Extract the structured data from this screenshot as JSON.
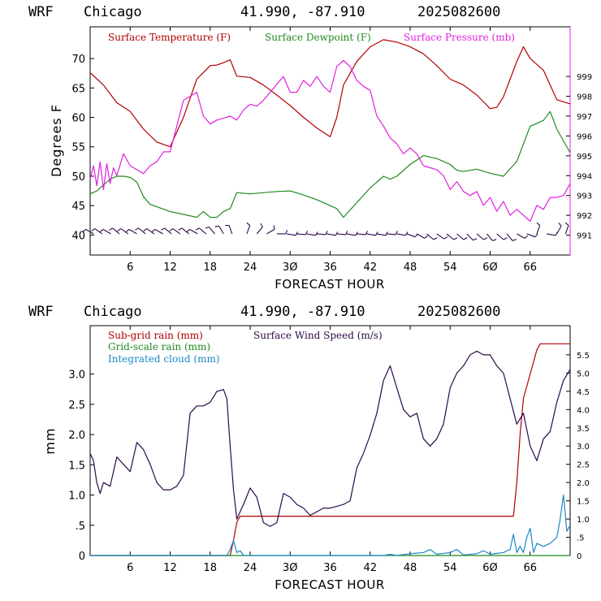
{
  "header": {
    "model": "WRF",
    "location": "Chicago",
    "coords": "41.990, -87.910",
    "run": "2025082600"
  },
  "colors": {
    "temperature": "#b00000",
    "dewpoint": "#1f8a1f",
    "pressure": "#e020e0",
    "subgrid_rain": "#b00000",
    "gridscale_rain": "#1f8a1f",
    "cloud": "#1a88c8",
    "wind": "#2a0a4a",
    "barb": "#2a0a4a"
  },
  "chart_data": [
    {
      "type": "line",
      "xlabel": "FORECAST HOUR",
      "ylabel": "Degrees F",
      "y2label": "",
      "xlim": [
        0,
        72
      ],
      "xticks": [
        6,
        12,
        18,
        24,
        30,
        36,
        42,
        48,
        54,
        60,
        66
      ],
      "xtick_labels": [
        "6",
        "12",
        "18",
        "24",
        "3Ø",
        "36",
        "42",
        "48",
        "54",
        "6Ø",
        "66"
      ],
      "ylim": [
        36.6,
        75.4
      ],
      "yticks": [
        40,
        45,
        50,
        55,
        60,
        65,
        70
      ],
      "ytick_labels": [
        "40",
        "45",
        "50",
        "55",
        "60",
        "65",
        "70"
      ],
      "y2lim": [
        990.0,
        1001.5
      ],
      "y2ticks": [
        991,
        992,
        993,
        994,
        995,
        996,
        997,
        998,
        999
      ],
      "y2tick_labels": [
        "991",
        "992",
        "993",
        "994",
        "995",
        "996",
        "997",
        "998",
        "999"
      ],
      "legend": [
        {
          "label": "Surface Temperature (F)",
          "key": "temperature"
        },
        {
          "label": "Surface Dewpoint (F)",
          "key": "dewpoint"
        },
        {
          "label": "Surface Pressure (mb)",
          "key": "pressure"
        }
      ],
      "series": [
        {
          "name": "Surface Temperature (F)",
          "key": "temperature",
          "axis": "left",
          "x": [
            0,
            2,
            4,
            6,
            8,
            10,
            12,
            14,
            16,
            18,
            19,
            20,
            21,
            22,
            24,
            26,
            28,
            30,
            32,
            34,
            36,
            37,
            38,
            40,
            42,
            44,
            46,
            48,
            50,
            52,
            54,
            56,
            58,
            60,
            61,
            62,
            64,
            65,
            66,
            68,
            70,
            72
          ],
          "values": [
            67.6,
            65.5,
            62.5,
            61.0,
            58.0,
            55.8,
            55.0,
            60.0,
            66.5,
            68.8,
            68.9,
            69.3,
            69.8,
            67.0,
            66.8,
            65.5,
            63.8,
            62.0,
            60.0,
            58.2,
            56.7,
            60.0,
            65.5,
            69.5,
            72.0,
            73.2,
            72.8,
            72.0,
            70.8,
            68.8,
            66.5,
            65.5,
            63.8,
            61.5,
            61.7,
            63.5,
            69.5,
            72.0,
            70.0,
            68.0,
            63.0,
            62.3
          ]
        },
        {
          "name": "Surface Dewpoint (F)",
          "key": "dewpoint",
          "axis": "left",
          "x": [
            0,
            1,
            2,
            3,
            4,
            5,
            6,
            7,
            8,
            9,
            10,
            12,
            14,
            16,
            17,
            18,
            19,
            20,
            21,
            22,
            24,
            26,
            28,
            30,
            32,
            34,
            36,
            37,
            38,
            40,
            42,
            44,
            45,
            46,
            48,
            50,
            52,
            54,
            55,
            56,
            58,
            60,
            62,
            64,
            66,
            68,
            69,
            70,
            72
          ],
          "values": [
            47.0,
            47.5,
            48.5,
            49.5,
            50.0,
            50.0,
            49.8,
            49.0,
            46.5,
            45.2,
            44.8,
            44.0,
            43.5,
            43.0,
            44.0,
            43.0,
            43.0,
            44.0,
            44.5,
            47.2,
            47.0,
            47.2,
            47.4,
            47.5,
            46.8,
            46.0,
            45.0,
            44.5,
            43.0,
            45.5,
            48.0,
            50.0,
            49.5,
            50.0,
            52.0,
            53.5,
            53.0,
            52.0,
            51.0,
            50.8,
            51.2,
            50.5,
            50.0,
            52.5,
            58.5,
            59.5,
            61.0,
            58.0,
            54.0
          ]
        },
        {
          "name": "Surface Pressure (mb)",
          "key": "pressure",
          "axis": "right",
          "x": [
            0,
            0.5,
            1,
            1.5,
            2,
            2.5,
            3,
            3.5,
            4,
            5,
            6,
            7,
            8,
            9,
            10,
            11,
            12,
            13,
            14,
            15,
            16,
            17,
            18,
            19,
            20,
            21,
            22,
            23,
            24,
            25,
            26,
            27,
            28,
            29,
            30,
            31,
            32,
            33,
            34,
            35,
            36,
            37,
            38,
            39,
            40,
            41,
            42,
            43,
            44,
            45,
            46,
            47,
            48,
            49,
            50,
            51,
            52,
            53,
            54,
            55,
            56,
            57,
            58,
            59,
            60,
            61,
            62,
            63,
            64,
            65,
            66,
            67,
            68,
            69,
            70,
            71,
            72
          ],
          "values": [
            993.8,
            994.5,
            993.5,
            994.7,
            993.3,
            994.6,
            993.6,
            994.4,
            994.0,
            995.1,
            994.5,
            994.3,
            994.1,
            994.5,
            994.7,
            995.2,
            995.2,
            996.5,
            997.8,
            998.0,
            998.2,
            997.0,
            996.6,
            996.8,
            996.9,
            997.0,
            996.8,
            997.3,
            997.6,
            997.5,
            997.8,
            998.2,
            998.6,
            999.0,
            998.2,
            998.2,
            998.8,
            998.5,
            999.0,
            998.5,
            998.2,
            999.5,
            999.8,
            999.5,
            998.8,
            998.5,
            998.3,
            997.0,
            996.5,
            995.9,
            995.6,
            995.1,
            995.4,
            995.1,
            994.5,
            994.4,
            994.3,
            994.0,
            993.3,
            993.7,
            993.2,
            993.0,
            993.2,
            992.5,
            992.9,
            992.2,
            992.7,
            992.0,
            992.3,
            992.0,
            991.7,
            992.5,
            992.3,
            992.9,
            992.9,
            993.0,
            993.6
          ]
        }
      ],
      "wind_barbs": {
        "y_level": 40.2,
        "x": [
          0.5,
          1.8,
          3.1,
          4.4,
          5.7,
          7.0,
          8.3,
          9.6,
          10.9,
          12.2,
          13.5,
          14.8,
          16.1,
          17.4,
          18.7,
          20.0,
          21.3,
          23.5,
          25.0,
          26.5,
          28.0,
          29.5,
          31.0,
          32.5,
          34.0,
          35.5,
          37.0,
          38.5,
          40.0,
          41.5,
          43.0,
          44.5,
          46.0,
          47.5,
          49.0,
          50.5,
          52.0,
          53.5,
          55.0,
          56.5,
          58.0,
          59.5,
          61.0,
          62.5,
          64.0,
          65.5,
          67.0,
          68.5,
          70.0,
          71.3
        ],
        "dir_deg": [
          300,
          305,
          300,
          310,
          305,
          300,
          310,
          305,
          300,
          310,
          305,
          310,
          300,
          310,
          320,
          330,
          340,
          20,
          40,
          60,
          90,
          100,
          95,
          100,
          95,
          100,
          95,
          100,
          95,
          100,
          100,
          95,
          100,
          110,
          120,
          130,
          125,
          130,
          130,
          135,
          130,
          140,
          130,
          140,
          120,
          110,
          20,
          100,
          30,
          20
        ]
      }
    },
    {
      "type": "line",
      "xlabel": "FORECAST HOUR",
      "ylabel": "mm",
      "xlim": [
        0,
        72
      ],
      "xticks": [
        6,
        12,
        18,
        24,
        30,
        36,
        42,
        48,
        54,
        60,
        66
      ],
      "xtick_labels": [
        "6",
        "12",
        "18",
        "24",
        "3Ø",
        "36",
        "42",
        "48",
        "54",
        "6Ø",
        "66"
      ],
      "ylim": [
        0,
        3.8
      ],
      "yticks": [
        0,
        0.5,
        1.0,
        1.5,
        2.0,
        2.5,
        3.0
      ],
      "ytick_labels": [
        "0",
        ".5",
        "1.0",
        "1.5",
        "2.0",
        "2.5",
        "3.0"
      ],
      "y2lim": [
        0,
        6.3
      ],
      "y2ticks": [
        0,
        0.5,
        1.0,
        1.5,
        2.0,
        2.5,
        3.0,
        3.5,
        4.0,
        4.5,
        5.0,
        5.5
      ],
      "y2tick_labels": [
        "0",
        ".5",
        "1.0",
        "1.5",
        "2.0",
        "2.5",
        "3.0",
        "3.5",
        "4.0",
        "4.5",
        "5.0",
        "5.5"
      ],
      "legend": [
        {
          "label": "Sub-grid rain (mm)",
          "key": "subgrid_rain"
        },
        {
          "label": "Surface Wind Speed (m/s)",
          "key": "wind"
        },
        {
          "label": "Grid-scale rain (mm)",
          "key": "gridscale_rain"
        },
        {
          "label": "Integrated cloud (mm)",
          "key": "cloud"
        }
      ],
      "series": [
        {
          "name": "Sub-grid rain (mm)",
          "key": "subgrid_rain",
          "axis": "left",
          "x": [
            0,
            21.0,
            21.5,
            22.0,
            22.5,
            23.0,
            63.5,
            64.0,
            64.5,
            65.0,
            66.0,
            67.0,
            67.5,
            72
          ],
          "values": [
            0,
            0,
            0.25,
            0.55,
            0.65,
            0.65,
            0.65,
            1.2,
            2.0,
            2.6,
            3.0,
            3.4,
            3.5,
            3.5
          ]
        },
        {
          "name": "Grid-scale rain (mm)",
          "key": "gridscale_rain",
          "axis": "left",
          "x": [
            0,
            72
          ],
          "values": [
            0,
            0
          ]
        },
        {
          "name": "Integrated cloud (mm)",
          "key": "cloud",
          "axis": "left",
          "x": [
            0,
            20.5,
            21.0,
            21.5,
            22.0,
            22.5,
            23.0,
            44.0,
            45.0,
            46.0,
            48.0,
            50.0,
            51.0,
            52.0,
            54.0,
            55.0,
            56.0,
            58.0,
            59.0,
            60.0,
            62.0,
            63.0,
            63.5,
            64.0,
            64.5,
            65.0,
            65.5,
            66.0,
            66.5,
            67.0,
            68.0,
            69.0,
            70.0,
            70.5,
            71.0,
            71.5,
            72
          ],
          "values": [
            0,
            0,
            0.1,
            0.25,
            0.05,
            0.08,
            0,
            0,
            0.02,
            0,
            0.03,
            0.05,
            0.1,
            0.02,
            0.05,
            0.1,
            0.01,
            0.03,
            0.08,
            0.02,
            0.05,
            0.1,
            0.35,
            0.05,
            0.15,
            0.05,
            0.3,
            0.45,
            0.05,
            0.2,
            0.15,
            0.2,
            0.3,
            0.6,
            1.0,
            0.4,
            0.5
          ]
        },
        {
          "name": "Surface Wind Speed (m/s)",
          "key": "wind",
          "axis": "right",
          "x": [
            0,
            0.5,
            1,
            1.5,
            2,
            3,
            4,
            5,
            6,
            7,
            8,
            9,
            10,
            11,
            12,
            13,
            14,
            15,
            16,
            17,
            18,
            19,
            20,
            20.5,
            21,
            21.5,
            22,
            23,
            24,
            25,
            26,
            27,
            28,
            29,
            30,
            31,
            32,
            33,
            34,
            35,
            36,
            37,
            38,
            39,
            40,
            41,
            42,
            43,
            44,
            45,
            46,
            47,
            48,
            49,
            50,
            51,
            52,
            53,
            54,
            55,
            56,
            57,
            58,
            59,
            60,
            61,
            62,
            63,
            64,
            65,
            66,
            67,
            68,
            69,
            70,
            71,
            72
          ],
          "values": [
            2.8,
            2.6,
            2.0,
            1.7,
            2.0,
            1.9,
            2.7,
            2.5,
            2.3,
            3.1,
            2.9,
            2.5,
            2.0,
            1.8,
            1.8,
            1.9,
            2.2,
            3.9,
            4.1,
            4.1,
            4.2,
            4.5,
            4.55,
            4.3,
            3.0,
            1.8,
            1.0,
            1.4,
            1.85,
            1.6,
            0.9,
            0.8,
            0.9,
            1.7,
            1.6,
            1.4,
            1.3,
            1.1,
            1.2,
            1.3,
            1.3,
            1.35,
            1.4,
            1.5,
            2.4,
            2.8,
            3.3,
            3.9,
            4.8,
            5.2,
            4.6,
            4.0,
            3.8,
            3.9,
            3.2,
            3.0,
            3.2,
            3.6,
            4.6,
            5.0,
            5.2,
            5.5,
            5.6,
            5.5,
            5.5,
            5.2,
            5.0,
            4.3,
            3.6,
            3.9,
            3.0,
            2.6,
            3.2,
            3.4,
            4.2,
            4.8,
            5.1
          ]
        }
      ]
    }
  ]
}
